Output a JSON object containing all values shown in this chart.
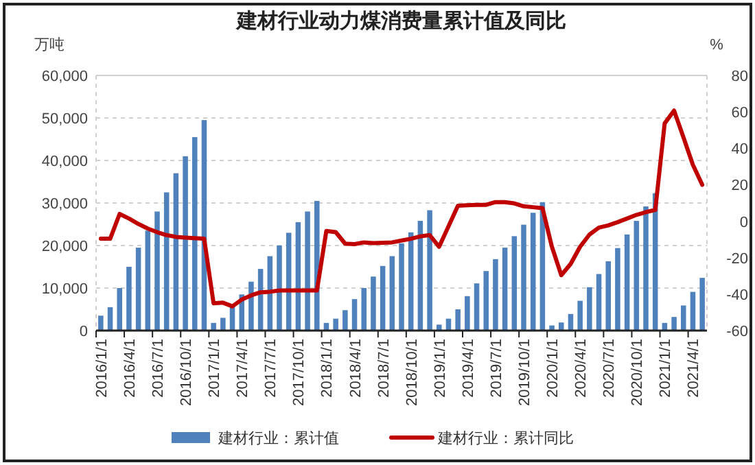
{
  "chart_data": {
    "type": "bar",
    "title": "建材行业动力煤消费量累计值及同比",
    "ylabel": "万吨",
    "y2label": "%",
    "categories": [
      "2016/1/1",
      null,
      null,
      "2016/4/1",
      null,
      null,
      "2016/7/1",
      null,
      null,
      "2016/10/1",
      null,
      null,
      "2017/1/1",
      null,
      null,
      "2017/4/1",
      null,
      null,
      "2017/7/1",
      null,
      null,
      "2017/10/1",
      null,
      null,
      "2018/1/1",
      null,
      null,
      "2018/4/1",
      null,
      null,
      "2018/7/1",
      null,
      null,
      "2018/10/1",
      null,
      null,
      "2019/1/1",
      null,
      null,
      "2019/4/1",
      null,
      null,
      "2019/7/1",
      null,
      null,
      "2019/10/1",
      null,
      null,
      "2020/1/1",
      null,
      null,
      "2020/4/1",
      null,
      null,
      "2020/7/1",
      null,
      null,
      "2020/10/1",
      null,
      null,
      "2021/1/1",
      null,
      null,
      "2021/4/1",
      null
    ],
    "series": [
      {
        "name": "建材行业：累计值",
        "color": "#4f81bd",
        "values": [
          3500,
          5500,
          10000,
          15000,
          19500,
          23500,
          28000,
          32500,
          37000,
          41000,
          45500,
          49500,
          1800,
          3000,
          6000,
          8500,
          11500,
          14500,
          17500,
          20000,
          23000,
          25500,
          28000,
          30500,
          1800,
          2800,
          4800,
          7400,
          10000,
          12700,
          15200,
          17500,
          20500,
          23100,
          25800,
          28300,
          1400,
          2800,
          5000,
          8100,
          11100,
          14000,
          16800,
          19500,
          22200,
          24900,
          27700,
          30200,
          1200,
          1900,
          3900,
          7000,
          10200,
          13300,
          16300,
          19400,
          22600,
          25800,
          29200,
          32300,
          1800,
          3200,
          5900,
          9100,
          12400
        ]
      },
      {
        "name": "建材行业：累计同比",
        "type": "line",
        "axis": "y2",
        "color": "#c00000",
        "values": [
          -9.6,
          -9.6,
          4,
          1.5,
          -1.5,
          -4,
          -6,
          -7.6,
          -8.6,
          -9,
          -9.3,
          -9.6,
          -45,
          -44.7,
          -46.7,
          -43,
          -40.7,
          -39,
          -38.7,
          -38,
          -38,
          -38,
          -38,
          -38,
          -5.3,
          -6,
          -12.3,
          -12.6,
          -11.6,
          -12,
          -11.8,
          -11.6,
          -10.6,
          -9.6,
          -8.3,
          -7.6,
          -14,
          -2.8,
          8.5,
          8.8,
          9,
          9,
          10.5,
          10.5,
          9.8,
          8.2,
          7.7,
          7.2,
          -14,
          -29.6,
          -23.4,
          -14,
          -7.3,
          -3.5,
          -2.3,
          -0.5,
          1.5,
          3.5,
          5,
          6.2,
          53.7,
          60.7,
          46,
          31,
          20
        ]
      }
    ],
    "ylim": [
      0,
      60000
    ],
    "yticks": [
      0,
      {
        "value": 10000,
        "label": "10,000"
      },
      {
        "value": 20000,
        "label": "20,000"
      },
      {
        "value": 30000,
        "label": "30,000"
      },
      {
        "value": 40000,
        "label": "40,000"
      },
      {
        "value": 50000,
        "label": "50,000"
      },
      {
        "value": 60000,
        "label": "60,000"
      }
    ],
    "y2lim": [
      -60,
      80
    ],
    "y2ticks": [
      -60,
      -40,
      -20,
      0,
      20,
      40,
      60,
      80
    ],
    "grid": "y",
    "legend": "bottom"
  }
}
